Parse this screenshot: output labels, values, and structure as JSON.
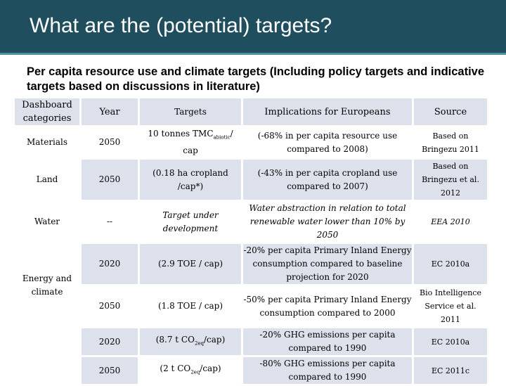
{
  "slide": {
    "title": "What are the (potential) targets?",
    "subtitle": "Per capita resource use and climate targets (Including policy targets and indicative targets based on discussions in literature)"
  },
  "table": {
    "headers": [
      "Dashboard categories",
      "Year",
      "Targets",
      "Implications for Europeans",
      "Source"
    ],
    "rows": [
      {
        "category": "Materials",
        "year": "2050",
        "target_pre": "10 tonnes TMC",
        "target_sub": "abiotic",
        "target_post": "/ cap",
        "implication": "(-68% in per capita resource use compared to 2008)",
        "source": "Based on Bringezu 2011"
      },
      {
        "category": "Land",
        "year": "2050",
        "target": "(0.18 ha cropland /cap*)",
        "implication": "(-43% in per capita cropland use compared to 2007)",
        "source": "Based on Bringezu et al. 2012"
      },
      {
        "category": "Water",
        "year": "--",
        "target": "Target under development",
        "implication": "Water abstraction in relation to total renewable water lower than 10% by 2050",
        "source": "EEA 2010"
      },
      {
        "category": "Energy and climate",
        "year": "2020",
        "target": "(2.9 TOE / cap)",
        "implication": "-20% per capita Primary Inland Energy consumption compared to baseline projection for 2020",
        "source": "EC 2010a"
      },
      {
        "year": "2050",
        "target": "(1.8 TOE / cap)",
        "implication": "-50% per capita Primary Inland Energy consumption compared to 2000",
        "source": "Bio Intelligence Service et al. 2011"
      },
      {
        "year": "2020",
        "target_pre": "(8.7 t CO",
        "target_sub": "2eq",
        "target_post": "/cap)",
        "implication": "-20% GHG emissions per capita compared to 1990",
        "source": "EC 2010a"
      },
      {
        "year": "2050",
        "target_pre": "(2 t CO",
        "target_sub": "2eq",
        "target_post": "/cap)",
        "implication": "-80% GHG emissions per capita compared to 1990",
        "source": "EC 2011c"
      }
    ]
  }
}
